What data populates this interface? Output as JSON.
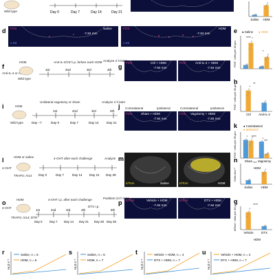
{
  "panel_letters": [
    "d",
    "e",
    "f",
    "g",
    "h",
    "i",
    "j",
    "k",
    "l",
    "m",
    "n",
    "o",
    "p",
    "q",
    "r",
    "s",
    "t",
    "u"
  ],
  "row_top": {
    "mouse_label": "Wild type",
    "timeline_days": [
      "Day 0",
      "Day 7",
      "Day 14",
      "Day 21"
    ],
    "bar_categories": [
      "Saline",
      "HDM"
    ]
  },
  "row_d": {
    "left_micro": {
      "marker": "FOS",
      "sub": "c-Kit",
      "region": "-7.84 mm",
      "group": "Saline"
    },
    "right_micro": {
      "marker": "FOS",
      "sub": "c-Kit",
      "region": "-7.84 mm",
      "group": "HDM"
    }
  },
  "panel_e": {
    "legend": [
      "Saline",
      "HDM"
    ],
    "ylabel": "FOS⁺ cells per 40 μm",
    "categories": [
      "c-Kit⁺⁺ cells",
      "c-Kit⁺⁺ cells"
    ],
    "significance": [
      "****",
      "*"
    ]
  },
  "panel_f": {
    "treatment": "HDM",
    "mouse_label": "Anti-IL-4 or Ctrl",
    "strain": "Wild type",
    "note": "Anti-IL-4/Ctrl i.p. before each HDM",
    "analyze": "Analyze 2 h later",
    "challenges": [
      "1st",
      "2nd",
      "3rd",
      "4th"
    ]
  },
  "panel_g": {
    "left": {
      "marker": "FOS",
      "group": "Ctrl + HDM",
      "region": "-7.84 mm"
    },
    "right": {
      "marker": "FOS",
      "group": "Anti-IL-4 + HDM",
      "region": "-7.84 mm"
    }
  },
  "panel_h": {
    "ylabel": "FOS⁺ cells per 40 μm",
    "categories": [
      "Ctrl",
      "Anti-IL-4"
    ],
    "significance": "**"
  },
  "panel_i": {
    "treatment": "HDM",
    "strain": "Wild type",
    "note": "Unilateral vagotomy or sham",
    "analyze": "Analyze 2 h later",
    "challenges": [
      "1st",
      "2nd",
      "3rd",
      "4th"
    ],
    "days": [
      "Day −7",
      "Day 0",
      "Day 7",
      "Day 14",
      "Day 21"
    ]
  },
  "panel_j": {
    "side_labels": [
      "Contralateral",
      "Ipsilateral",
      "Contralateral",
      "Ipsilateral"
    ],
    "left": {
      "marker": "FOS",
      "group": "Sham + HDM",
      "region": "-7.84 mm"
    },
    "right": {
      "marker": "FOS",
      "group": "Vagotomy + HDM",
      "region": "-7.84 mm"
    }
  },
  "panel_k": {
    "legend": [
      "Contralateral",
      "Ipsilateral"
    ],
    "ylabel": "FOS⁺ cells per 40 μm",
    "categories": [
      "Sham",
      "Vagotomy"
    ],
    "group_label": "HDM",
    "significance": [
      "****",
      "***"
    ]
  },
  "panel_l": {
    "treatment": "HDM or saline",
    "drug": "4-OHT",
    "strain": "TRAP2; Ai14",
    "note": "4-OHT after each challenge",
    "analyze": "Analyze",
    "days": [
      "Day 0",
      "Day 7",
      "Day 14",
      "Day 21",
      "Day 28"
    ]
  },
  "panel_m": {
    "left": {
      "marker": "tdTom",
      "group": "Saline"
    },
    "right": {
      "marker": "tdTom",
      "group": "HDM"
    }
  },
  "panel_n": {
    "ylabel": "Cells mm⁻²",
    "categories": [
      "Saline",
      "HDM"
    ],
    "significance": "***"
  },
  "panel_o": {
    "treatment": "HDM",
    "drug": "4-OHT",
    "strain": "TRAP2; Ai14; DTR",
    "note": "4-OHT i.p. after each challenge",
    "dtx": "DTX i.p.",
    "analyze": "Pavlitent 24 h later",
    "challenges": [
      "1st",
      "2nd",
      "3rd",
      "4th",
      "5th"
    ],
    "days": [
      "Day 0",
      "Day 7",
      "Day 14",
      "Day 21",
      "Day 28",
      "Day 35"
    ]
  },
  "panel_p": {
    "left": {
      "marker": "tdTom",
      "group": "Vehicle + HDM",
      "region": "-7.84 mm"
    },
    "right": {
      "marker": "tdTom",
      "group": "DTX + HDM",
      "region": "-7.84 mm"
    }
  },
  "panel_q": {
    "ylabel": "tdTom⁺ cells per 40 μm",
    "categories": [
      "Vehicle",
      "DTX"
    ],
    "group_label": "HDM",
    "significance": "****"
  },
  "bottom_row": {
    "r": {
      "legend": [
        "Saline, n = 5",
        "HDM, n = 6"
      ],
      "ylabel": "H₂O s⁻¹"
    },
    "s": {
      "legend": [
        "Saline, n = 5",
        "HDM, n = 7"
      ],
      "ylabel": "H₂O s⁻¹"
    },
    "t": {
      "legend": [
        "Vehicle + HDM, n = 4",
        "DTX + HDM, n = 7"
      ],
      "ylabel": "H₂O s⁻¹"
    },
    "u": {
      "legend": [
        "Vehicle + HDM, n = 4",
        "DTX + HDM, n = 7"
      ],
      "ylabel": "H₂O s⁻¹"
    }
  },
  "colors": {
    "saline": "#3a8fd6",
    "hdm": "#f0a020",
    "micro_bg": "#0c0f3a",
    "fos": "#e04080",
    "tdtom": "#e8d830"
  },
  "chart_data": [
    {
      "type": "bar",
      "id": "top",
      "categories": [
        "Saline",
        "HDM"
      ],
      "values": [
        8,
        52
      ],
      "ylim": [
        0,
        70
      ]
    },
    {
      "type": "bar",
      "id": "e",
      "categories": [
        "c-Kit⁺⁺ cells",
        "c-Kit⁺⁺ cells"
      ],
      "series": [
        {
          "name": "Saline",
          "values": [
            8,
            5
          ]
        },
        {
          "name": "HDM",
          "values": [
            55,
            25
          ]
        }
      ],
      "ylim": [
        0,
        70
      ]
    },
    {
      "type": "bar",
      "id": "h",
      "categories": [
        "Ctrl",
        "Anti-IL-4"
      ],
      "values": [
        48,
        20
      ],
      "ylim": [
        0,
        60
      ]
    },
    {
      "type": "bar",
      "id": "k",
      "categories": [
        "Sham",
        "Vagotomy"
      ],
      "series": [
        {
          "name": "Contralateral",
          "values": [
            42,
            38
          ]
        },
        {
          "name": "Ipsilateral",
          "values": [
            40,
            10
          ]
        }
      ],
      "ylim": [
        0,
        60
      ]
    },
    {
      "type": "bar",
      "id": "n",
      "categories": [
        "Saline",
        "HDM"
      ],
      "values": [
        3,
        9
      ],
      "ylim": [
        0,
        15
      ]
    },
    {
      "type": "bar",
      "id": "q",
      "categories": [
        "Vehicle",
        "DTX"
      ],
      "values": [
        60,
        12
      ],
      "ylim": [
        0,
        80
      ]
    }
  ]
}
